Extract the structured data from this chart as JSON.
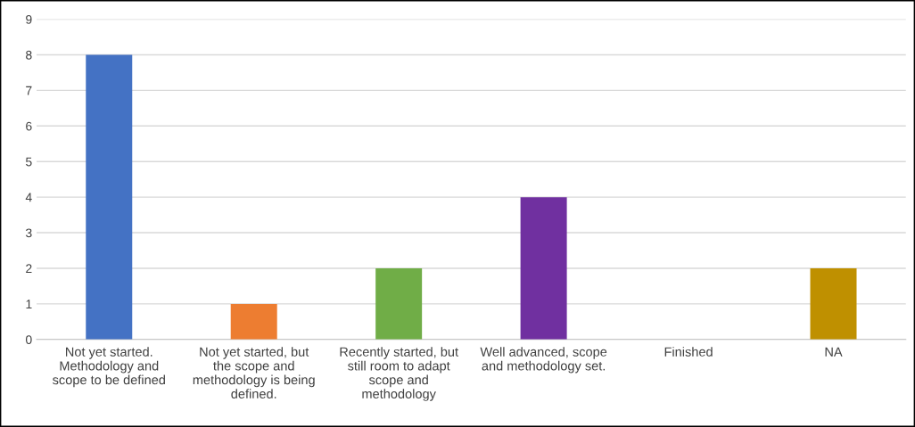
{
  "chart_data": {
    "type": "bar",
    "categories": [
      "Not yet started.\nMethodology and\nscope to be defined",
      "Not yet started, but\nthe scope and\nmethodology is being\ndefined.",
      "Recently started, but\nstill room to adapt\nscope and\nmethodology",
      "Well advanced, scope\nand methodology set.",
      "Finished",
      "NA"
    ],
    "values": [
      8,
      1,
      2,
      4,
      0,
      2
    ],
    "colors": [
      "#4472c4",
      "#ed7d31",
      "#70ad47",
      "#7030a0",
      "#a5a5a5",
      "#bf9000"
    ],
    "ylim": [
      0,
      9
    ],
    "yticks": [
      0,
      1,
      2,
      3,
      4,
      5,
      6,
      7,
      8,
      9
    ],
    "grid": "y",
    "legend": false
  }
}
